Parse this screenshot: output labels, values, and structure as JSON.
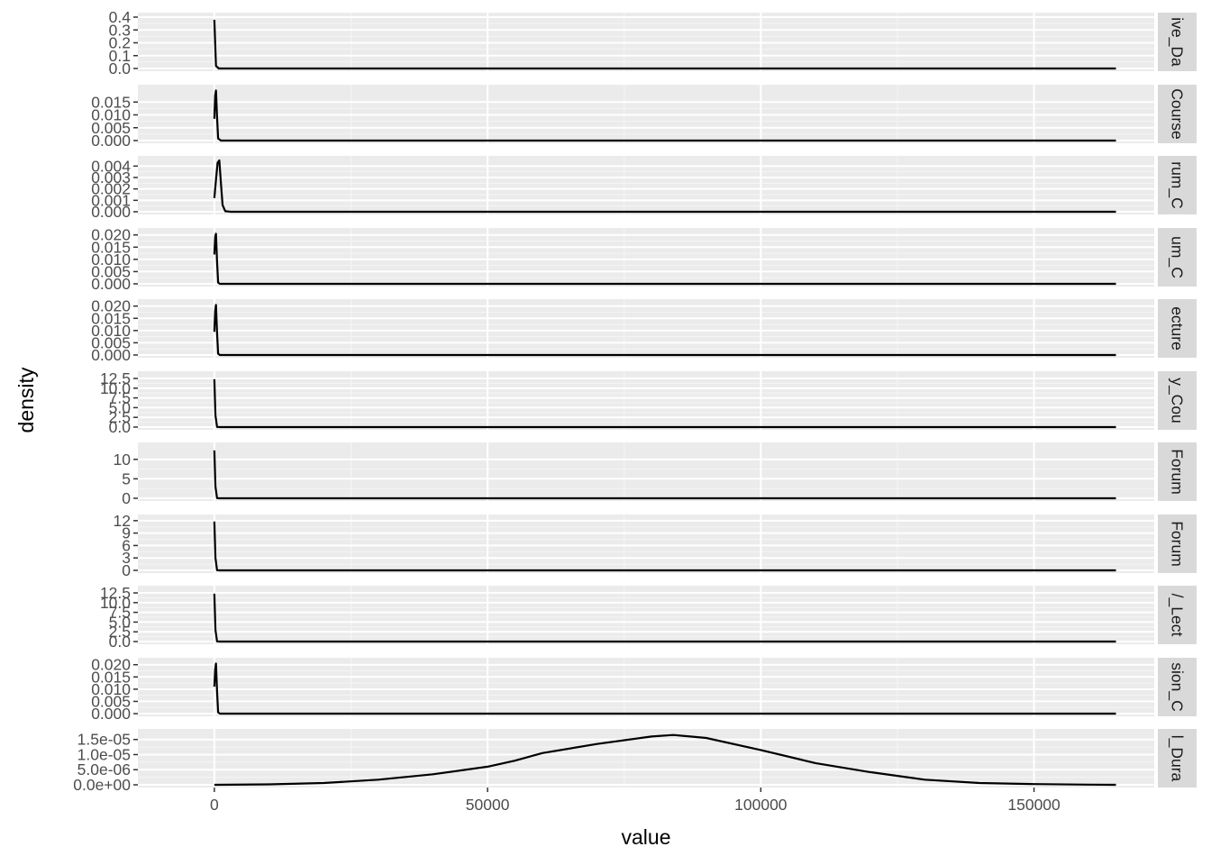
{
  "chart_data": {
    "type": "line",
    "xlabel": "value",
    "ylabel": "density",
    "xlim": [
      -14000,
      172000
    ],
    "x_ticks": [
      0,
      50000,
      100000,
      150000
    ],
    "x_tick_labels": [
      "0",
      "50000",
      "100000",
      "150000"
    ],
    "grid": true,
    "panels": [
      {
        "strip": "ive_Da",
        "ylim": [
          0,
          0.4
        ],
        "y_ticks": [
          0,
          0.1,
          0.2,
          0.3,
          0.4
        ],
        "y_tick_labels": [
          "0.0",
          "0.1",
          "0.2",
          "0.3",
          "0.4"
        ],
        "x": [
          0,
          300,
          800,
          2000,
          165000
        ],
        "y": [
          0.38,
          0.02,
          0.0,
          0.0,
          0.0
        ]
      },
      {
        "strip": "Course",
        "ylim": [
          0,
          0.02
        ],
        "y_ticks": [
          0,
          0.005,
          0.01,
          0.015
        ],
        "y_tick_labels": [
          "0.000",
          "0.005",
          "0.010",
          "0.015"
        ],
        "x": [
          0,
          150,
          300,
          500,
          700,
          1200,
          165000
        ],
        "y": [
          0.0085,
          0.0175,
          0.0195,
          0.009,
          0.0008,
          0.0,
          0.0
        ]
      },
      {
        "strip": "rum_C",
        "ylim": [
          0,
          0.0045
        ],
        "y_ticks": [
          0,
          0.001,
          0.002,
          0.003,
          0.004
        ],
        "y_tick_labels": [
          "0.000",
          "0.001",
          "0.002",
          "0.003",
          "0.004"
        ],
        "x": [
          0,
          300,
          600,
          900,
          1200,
          1500,
          2000,
          3000,
          165000
        ],
        "y": [
          0.0012,
          0.0028,
          0.0043,
          0.0045,
          0.0025,
          0.0006,
          5e-05,
          0.0,
          0.0
        ]
      },
      {
        "strip": "um_C",
        "ylim": [
          0,
          0.021
        ],
        "y_ticks": [
          0,
          0.005,
          0.01,
          0.015,
          0.02
        ],
        "y_tick_labels": [
          "0.000",
          "0.005",
          "0.010",
          "0.015",
          "0.020"
        ],
        "x": [
          0,
          150,
          300,
          500,
          700,
          1000,
          165000
        ],
        "y": [
          0.012,
          0.019,
          0.0205,
          0.009,
          0.0005,
          0.0,
          0.0
        ]
      },
      {
        "strip": "ecture",
        "ylim": [
          0,
          0.021
        ],
        "y_ticks": [
          0,
          0.005,
          0.01,
          0.015,
          0.02
        ],
        "y_tick_labels": [
          "0.000",
          "0.005",
          "0.010",
          "0.015",
          "0.020"
        ],
        "x": [
          0,
          150,
          300,
          500,
          700,
          1000,
          165000
        ],
        "y": [
          0.0095,
          0.018,
          0.0205,
          0.009,
          0.0005,
          0.0,
          0.0
        ]
      },
      {
        "strip": "y_Cou",
        "ylim": [
          0,
          13.2
        ],
        "y_ticks": [
          0,
          2.5,
          5,
          7.5,
          10,
          12.5
        ],
        "y_tick_labels": [
          "0.0",
          "2.5",
          "5.0",
          "7.5",
          "10.0",
          "12.5"
        ],
        "x": [
          0,
          200,
          500,
          1000,
          165000
        ],
        "y": [
          12.3,
          3.0,
          0.05,
          0.0,
          0.0
        ]
      },
      {
        "strip": "Forum",
        "ylim": [
          0,
          13.2
        ],
        "y_ticks": [
          0,
          5,
          10
        ],
        "y_tick_labels": [
          "0",
          "5",
          "10"
        ],
        "x": [
          0,
          200,
          500,
          1000,
          165000
        ],
        "y": [
          12.3,
          3.0,
          0.05,
          0.0,
          0.0
        ]
      },
      {
        "strip": "Forum",
        "ylim": [
          0,
          12.4
        ],
        "y_ticks": [
          0,
          3,
          6,
          9,
          12
        ],
        "y_tick_labels": [
          "0",
          "3",
          "6",
          "9",
          "12"
        ],
        "x": [
          0,
          200,
          500,
          1000,
          165000
        ],
        "y": [
          11.8,
          3.0,
          0.05,
          0.0,
          0.0
        ]
      },
      {
        "strip": "/_Lect",
        "ylim": [
          0,
          13.2
        ],
        "y_ticks": [
          0,
          2.5,
          5,
          7.5,
          10,
          12.5
        ],
        "y_tick_labels": [
          "0.0",
          "2.5",
          "5.0",
          "7.5",
          "10.0",
          "12.5"
        ],
        "x": [
          0,
          200,
          500,
          1000,
          165000
        ],
        "y": [
          12.3,
          3.0,
          0.05,
          0.0,
          0.0
        ]
      },
      {
        "strip": "sion_C",
        "ylim": [
          0,
          0.021
        ],
        "y_ticks": [
          0,
          0.005,
          0.01,
          0.015,
          0.02
        ],
        "y_tick_labels": [
          "0.000",
          "0.005",
          "0.010",
          "0.015",
          "0.020"
        ],
        "x": [
          0,
          150,
          300,
          500,
          700,
          1000,
          165000
        ],
        "y": [
          0.011,
          0.018,
          0.0205,
          0.009,
          0.0005,
          0.0,
          0.0
        ]
      },
      {
        "strip": "l_Dura",
        "ylim": [
          0,
          1.7e-05
        ],
        "y_ticks": [
          0,
          5e-06,
          1e-05,
          1.5e-05
        ],
        "y_tick_labels": [
          "0.0e+00",
          "5.0e-06",
          "1.0e-05",
          "1.5e-05"
        ],
        "x": [
          0,
          10000,
          20000,
          30000,
          40000,
          50000,
          55000,
          60000,
          70000,
          80000,
          84000,
          90000,
          100000,
          110000,
          120000,
          130000,
          140000,
          150000,
          160000,
          165000
        ],
        "y": [
          0.0,
          1.5e-07,
          6e-07,
          1.7e-06,
          3.5e-06,
          6e-06,
          8e-06,
          1.05e-05,
          1.35e-05,
          1.6e-05,
          1.65e-05,
          1.55e-05,
          1.15e-05,
          7.2e-06,
          4.2e-06,
          1.7e-06,
          6e-07,
          2.5e-07,
          6e-08,
          0.0
        ]
      }
    ]
  }
}
